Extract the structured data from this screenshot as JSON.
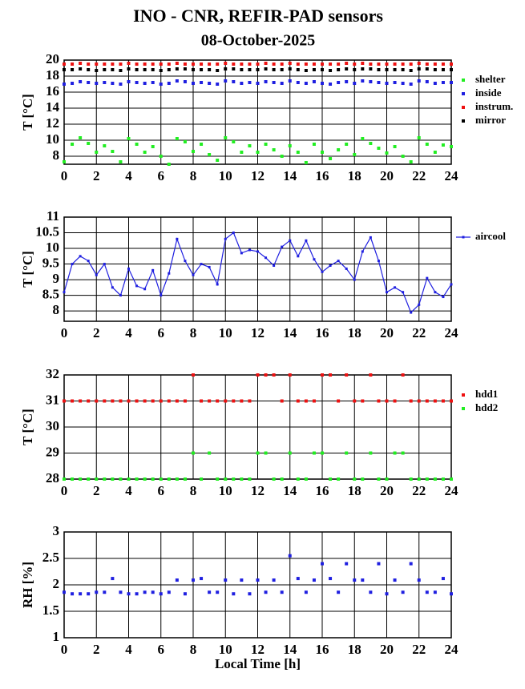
{
  "chart_data": [
    {
      "type": "scatter",
      "title": "INO - CNR, REFIR-PAD sensors",
      "subtitle": "08-October-2025",
      "ylabel": "T [°C]",
      "xlim": [
        0,
        24
      ],
      "xticks": [
        0,
        2,
        4,
        6,
        8,
        10,
        12,
        14,
        16,
        18,
        20,
        22,
        24
      ],
      "ylim": [
        7,
        20
      ],
      "yticks": [
        8,
        10,
        12,
        14,
        16,
        18,
        20
      ],
      "grid": true,
      "legend": "right",
      "x": [
        0,
        0.5,
        1,
        1.5,
        2,
        2.5,
        3,
        3.5,
        4,
        4.5,
        5,
        5.5,
        6,
        6.5,
        7,
        7.5,
        8,
        8.5,
        9,
        9.5,
        10,
        10.5,
        11,
        11.5,
        12,
        12.5,
        13,
        13.5,
        14,
        14.5,
        15,
        15.5,
        16,
        16.5,
        17,
        17.5,
        18,
        18.5,
        19,
        19.5,
        20,
        20.5,
        21,
        21.5,
        22,
        22.5,
        23,
        23.5,
        24
      ],
      "series": [
        {
          "name": "shelter",
          "color": "#22ee22",
          "values": [
            7.3,
            9.5,
            10.3,
            9.6,
            8.5,
            9.3,
            8.6,
            7.3,
            10.2,
            9.5,
            8.5,
            9.2,
            8.0,
            7.0,
            10.2,
            9.8,
            8.6,
            9.5,
            8.2,
            7.5,
            10.3,
            9.8,
            8.5,
            9.3,
            8.5,
            9.5,
            8.8,
            8.0,
            9.3,
            8.5,
            7.2,
            9.5,
            8.5,
            7.7,
            8.8,
            9.5,
            8.2,
            10.2,
            9.6,
            9.0,
            8.4,
            9.2,
            8.0,
            7.3,
            10.3,
            9.5,
            8.5,
            9.4,
            9.2
          ]
        },
        {
          "name": "inside",
          "color": "#1f1fe0",
          "values": [
            17.0,
            17.1,
            17.3,
            17.2,
            17.1,
            17.2,
            17.1,
            17.0,
            17.3,
            17.2,
            17.1,
            17.2,
            17.0,
            17.1,
            17.4,
            17.3,
            17.1,
            17.2,
            17.1,
            17.0,
            17.4,
            17.3,
            17.1,
            17.2,
            17.1,
            17.3,
            17.2,
            17.1,
            17.4,
            17.2,
            17.1,
            17.3,
            17.1,
            17.0,
            17.2,
            17.3,
            17.1,
            17.4,
            17.3,
            17.2,
            17.1,
            17.2,
            17.1,
            17.0,
            17.4,
            17.3,
            17.1,
            17.2,
            17.2
          ]
        },
        {
          "name": "instrum.",
          "color": "#ee1111",
          "values": [
            19.5,
            19.5,
            19.6,
            19.5,
            19.5,
            19.5,
            19.5,
            19.5,
            19.6,
            19.5,
            19.5,
            19.5,
            19.5,
            19.5,
            19.6,
            19.5,
            19.5,
            19.5,
            19.5,
            19.5,
            19.6,
            19.5,
            19.5,
            19.5,
            19.5,
            19.6,
            19.5,
            19.5,
            19.6,
            19.5,
            19.5,
            19.5,
            19.5,
            19.5,
            19.5,
            19.6,
            19.5,
            19.6,
            19.5,
            19.5,
            19.5,
            19.5,
            19.5,
            19.5,
            19.6,
            19.5,
            19.5,
            19.5,
            19.5
          ]
        },
        {
          "name": "mirror",
          "color": "#000000",
          "values": [
            18.8,
            18.8,
            18.9,
            18.8,
            18.7,
            18.8,
            18.8,
            18.7,
            18.9,
            18.8,
            18.8,
            18.8,
            18.7,
            18.8,
            18.9,
            18.9,
            18.8,
            18.8,
            18.8,
            18.7,
            18.9,
            18.9,
            18.8,
            18.8,
            18.8,
            18.9,
            18.8,
            18.8,
            18.9,
            18.8,
            18.7,
            18.8,
            18.8,
            18.7,
            18.8,
            18.9,
            18.8,
            18.9,
            18.9,
            18.8,
            18.8,
            18.8,
            18.8,
            18.7,
            18.9,
            18.9,
            18.8,
            18.8,
            18.8
          ]
        }
      ]
    },
    {
      "type": "line",
      "ylabel": "T [°C]",
      "xlim": [
        0,
        24
      ],
      "xticks": [
        0,
        2,
        4,
        6,
        8,
        10,
        12,
        14,
        16,
        18,
        20,
        22,
        24
      ],
      "ylim": [
        7.67,
        11
      ],
      "yticks": [
        8,
        8.5,
        9,
        9.5,
        10,
        10.5,
        11
      ],
      "grid": true,
      "legend": "right",
      "x": [
        0,
        0.5,
        1,
        1.5,
        2,
        2.5,
        3,
        3.5,
        4,
        4.5,
        5,
        5.5,
        6,
        6.5,
        7,
        7.5,
        8,
        8.5,
        9,
        9.5,
        10,
        10.5,
        11,
        11.5,
        12,
        12.5,
        13,
        13.5,
        14,
        14.5,
        15,
        15.5,
        16,
        16.5,
        17,
        17.5,
        18,
        18.5,
        19,
        19.5,
        20,
        20.5,
        21,
        21.5,
        22,
        22.5,
        23,
        23.5,
        24
      ],
      "series": [
        {
          "name": "aircool",
          "color": "#1f1fe0",
          "values": [
            8.6,
            9.5,
            9.75,
            9.6,
            9.15,
            9.5,
            8.75,
            8.5,
            9.35,
            8.8,
            8.7,
            9.3,
            8.5,
            9.2,
            10.3,
            9.6,
            9.15,
            9.5,
            9.4,
            8.85,
            10.3,
            10.5,
            9.85,
            9.95,
            9.9,
            9.7,
            9.45,
            10.05,
            10.25,
            9.75,
            10.25,
            9.65,
            9.25,
            9.45,
            9.6,
            9.35,
            9.0,
            9.9,
            10.35,
            9.6,
            8.6,
            8.75,
            8.6,
            7.95,
            8.2,
            9.05,
            8.6,
            8.45,
            8.85
          ]
        }
      ]
    },
    {
      "type": "scatter",
      "ylabel": "T [°C]",
      "xlim": [
        0,
        24
      ],
      "xticks": [
        0,
        2,
        4,
        6,
        8,
        10,
        12,
        14,
        16,
        18,
        20,
        22,
        24
      ],
      "ylim": [
        28,
        32
      ],
      "yticks": [
        28,
        29,
        30,
        31,
        32
      ],
      "grid": true,
      "legend": "right",
      "x": [
        0,
        0.5,
        1,
        1.5,
        2,
        2.5,
        3,
        3.5,
        4,
        4.5,
        5,
        5.5,
        6,
        6.5,
        7,
        7.5,
        8,
        8.5,
        9,
        9.5,
        10,
        10.5,
        11,
        11.5,
        12,
        12.5,
        13,
        13.5,
        14,
        14.5,
        15,
        15.5,
        16,
        16.5,
        17,
        17.5,
        18,
        18.5,
        19,
        19.5,
        20,
        20.5,
        21,
        21.5,
        22,
        22.5,
        23,
        23.5,
        24
      ],
      "series": [
        {
          "name": "hdd1",
          "color": "#ee1111",
          "values": [
            31,
            31,
            31,
            31,
            31,
            31,
            31,
            31,
            31,
            31,
            31,
            31,
            31,
            31,
            31,
            31,
            32,
            31,
            31,
            31,
            31,
            31,
            31,
            31,
            32,
            32,
            32,
            31,
            32,
            31,
            31,
            31,
            32,
            32,
            31,
            32,
            31,
            31,
            32,
            31,
            31,
            31,
            32,
            31,
            31,
            31,
            31,
            31,
            31
          ]
        },
        {
          "name": "hdd2",
          "color": "#22ee22",
          "values": [
            28,
            28,
            28,
            28,
            28,
            28,
            28,
            28,
            28,
            28,
            28,
            28,
            28,
            28,
            28,
            28,
            29,
            28,
            29,
            28,
            28,
            28,
            28,
            28,
            29,
            29,
            28,
            28,
            29,
            28,
            28,
            29,
            29,
            28,
            28,
            29,
            28,
            28,
            29,
            28,
            28,
            29,
            29,
            28,
            28,
            28,
            28,
            28,
            28
          ]
        }
      ]
    },
    {
      "type": "scatter",
      "ylabel": "RH [%]",
      "xlabel": "Local Time [h]",
      "xlim": [
        0,
        24
      ],
      "xticks": [
        0,
        2,
        4,
        6,
        8,
        10,
        12,
        14,
        16,
        18,
        20,
        22,
        24
      ],
      "ylim": [
        1,
        3
      ],
      "yticks": [
        1,
        1.5,
        2,
        2.5,
        3
      ],
      "grid": true,
      "x": [
        0,
        0.5,
        1,
        1.5,
        2,
        2.5,
        3,
        3.5,
        4,
        4.5,
        5,
        5.5,
        6,
        6.5,
        7,
        7.5,
        8,
        8.5,
        9,
        9.5,
        10,
        10.5,
        11,
        11.5,
        12,
        12.5,
        13,
        13.5,
        14,
        14.5,
        15,
        15.5,
        16,
        16.5,
        17,
        17.5,
        18,
        18.5,
        19,
        19.5,
        20,
        20.5,
        21,
        21.5,
        22,
        22.5,
        23,
        23.5,
        24
      ],
      "series": [
        {
          "name": "RH",
          "color": "#1f1fe0",
          "values": [
            1.86,
            1.83,
            1.83,
            1.83,
            1.86,
            1.86,
            2.12,
            1.86,
            1.83,
            1.83,
            1.86,
            1.86,
            1.83,
            1.86,
            2.09,
            1.83,
            2.09,
            2.12,
            1.86,
            1.86,
            2.09,
            1.83,
            2.09,
            1.83,
            2.09,
            1.86,
            2.09,
            1.86,
            2.55,
            2.12,
            1.86,
            2.09,
            2.4,
            2.12,
            1.86,
            2.4,
            2.09,
            2.09,
            1.86,
            2.4,
            1.83,
            2.09,
            1.86,
            2.4,
            2.09,
            1.86,
            1.86,
            2.12,
            1.83
          ]
        }
      ]
    }
  ]
}
